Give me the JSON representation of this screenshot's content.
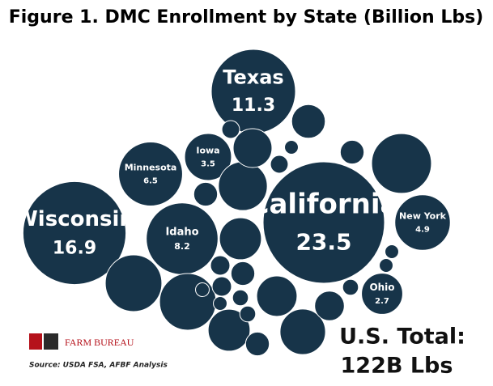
{
  "chart_data": {
    "type": "packed-bubble",
    "title": "Figure 1. DMC Enrollment by State (Billion Lbs)",
    "color": "#173449",
    "categories": [
      "Texas",
      "California",
      "Wisconsin",
      "Minnesota",
      "Iowa",
      "Idaho",
      "New York",
      "Ohio",
      null,
      null,
      null,
      null,
      null,
      null,
      null,
      null,
      null,
      null,
      null,
      null,
      null,
      null,
      null,
      null,
      null,
      null,
      null,
      null,
      null,
      null,
      null,
      null,
      null,
      null,
      null
    ],
    "values": [
      11.3,
      23.5,
      16.9,
      6.5,
      3.5,
      8.2,
      4.9,
      2.7,
      5.7,
      5.1,
      5.1,
      2.8,
      3.3,
      2.6,
      3.8,
      2.8,
      2.4,
      1.8,
      1.4,
      0.9,
      0.9,
      0.9,
      0.9,
      0.6,
      0.6,
      0.4,
      0.4,
      0.3,
      0.3,
      0.5,
      0.5,
      0.4,
      0.3,
      0.3,
      0.3
    ],
    "total_label": "U.S. Total:",
    "total_value": "122B Lbs",
    "logo_text": "FARM BUREAU",
    "source": "Source:  USDA FSA, AFBF Analysis"
  }
}
